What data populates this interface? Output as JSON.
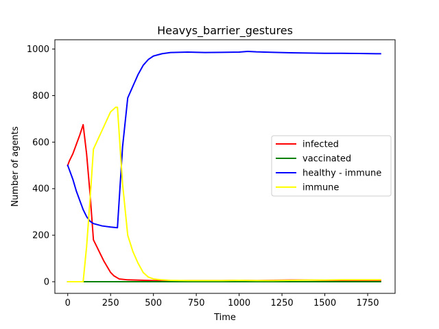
{
  "chart_data": {
    "type": "line",
    "title": "Heavys_barrier_gestures",
    "xlabel": "Time",
    "ylabel": "Number of agents",
    "xlim": [
      -75,
      1910
    ],
    "ylim": [
      -50,
      1040
    ],
    "xticks": [
      0,
      250,
      500,
      750,
      1000,
      1250,
      1500,
      1750
    ],
    "yticks": [
      0,
      200,
      400,
      600,
      800,
      1000
    ],
    "grid": false,
    "legend_position": "center-right",
    "series": [
      {
        "name": "infected",
        "color": "#ff0000",
        "x": [
          0,
          10,
          30,
          50,
          70,
          90,
          110,
          130,
          150,
          170,
          190,
          210,
          230,
          250,
          270,
          300,
          350,
          400,
          500,
          600,
          700,
          800,
          900,
          1000,
          1100,
          1200,
          1300,
          1400,
          1500,
          1600,
          1700,
          1800,
          1825
        ],
        "y": [
          500,
          520,
          550,
          590,
          630,
          675,
          550,
          380,
          180,
          150,
          120,
          90,
          65,
          40,
          25,
          12,
          8,
          7,
          5,
          4,
          5,
          5,
          5,
          6,
          5,
          6,
          7,
          7,
          6,
          6,
          6,
          5,
          5
        ]
      },
      {
        "name": "vaccinated",
        "color": "#008000",
        "x": [
          0,
          1825
        ],
        "y": [
          0,
          0
        ]
      },
      {
        "name": "healthy - immune",
        "color": "#0000ff",
        "x": [
          0,
          10,
          30,
          50,
          70,
          90,
          110,
          130,
          150,
          200,
          250,
          290,
          320,
          350,
          380,
          410,
          440,
          470,
          500,
          550,
          600,
          700,
          800,
          900,
          1000,
          1050,
          1100,
          1200,
          1300,
          1400,
          1500,
          1600,
          1700,
          1800,
          1825
        ],
        "y": [
          500,
          480,
          440,
          390,
          350,
          310,
          280,
          260,
          250,
          240,
          235,
          232,
          580,
          790,
          840,
          890,
          930,
          955,
          970,
          980,
          985,
          987,
          985,
          986,
          987,
          990,
          988,
          986,
          984,
          983,
          982,
          982,
          981,
          980,
          980
        ]
      },
      {
        "name": "immune",
        "color": "#ffff00",
        "x": [
          0,
          50,
          90,
          110,
          130,
          150,
          200,
          250,
          280,
          290,
          320,
          350,
          380,
          410,
          440,
          470,
          500,
          550,
          600,
          700,
          800,
          900,
          1000,
          1100,
          1200,
          1300,
          1400,
          1500,
          1600,
          1700,
          1800,
          1825
        ],
        "y": [
          0,
          0,
          0,
          150,
          350,
          570,
          650,
          730,
          750,
          750,
          420,
          200,
          130,
          80,
          40,
          20,
          12,
          8,
          6,
          5,
          5,
          5,
          6,
          5,
          5,
          6,
          7,
          7,
          8,
          8,
          8,
          8
        ]
      }
    ]
  }
}
